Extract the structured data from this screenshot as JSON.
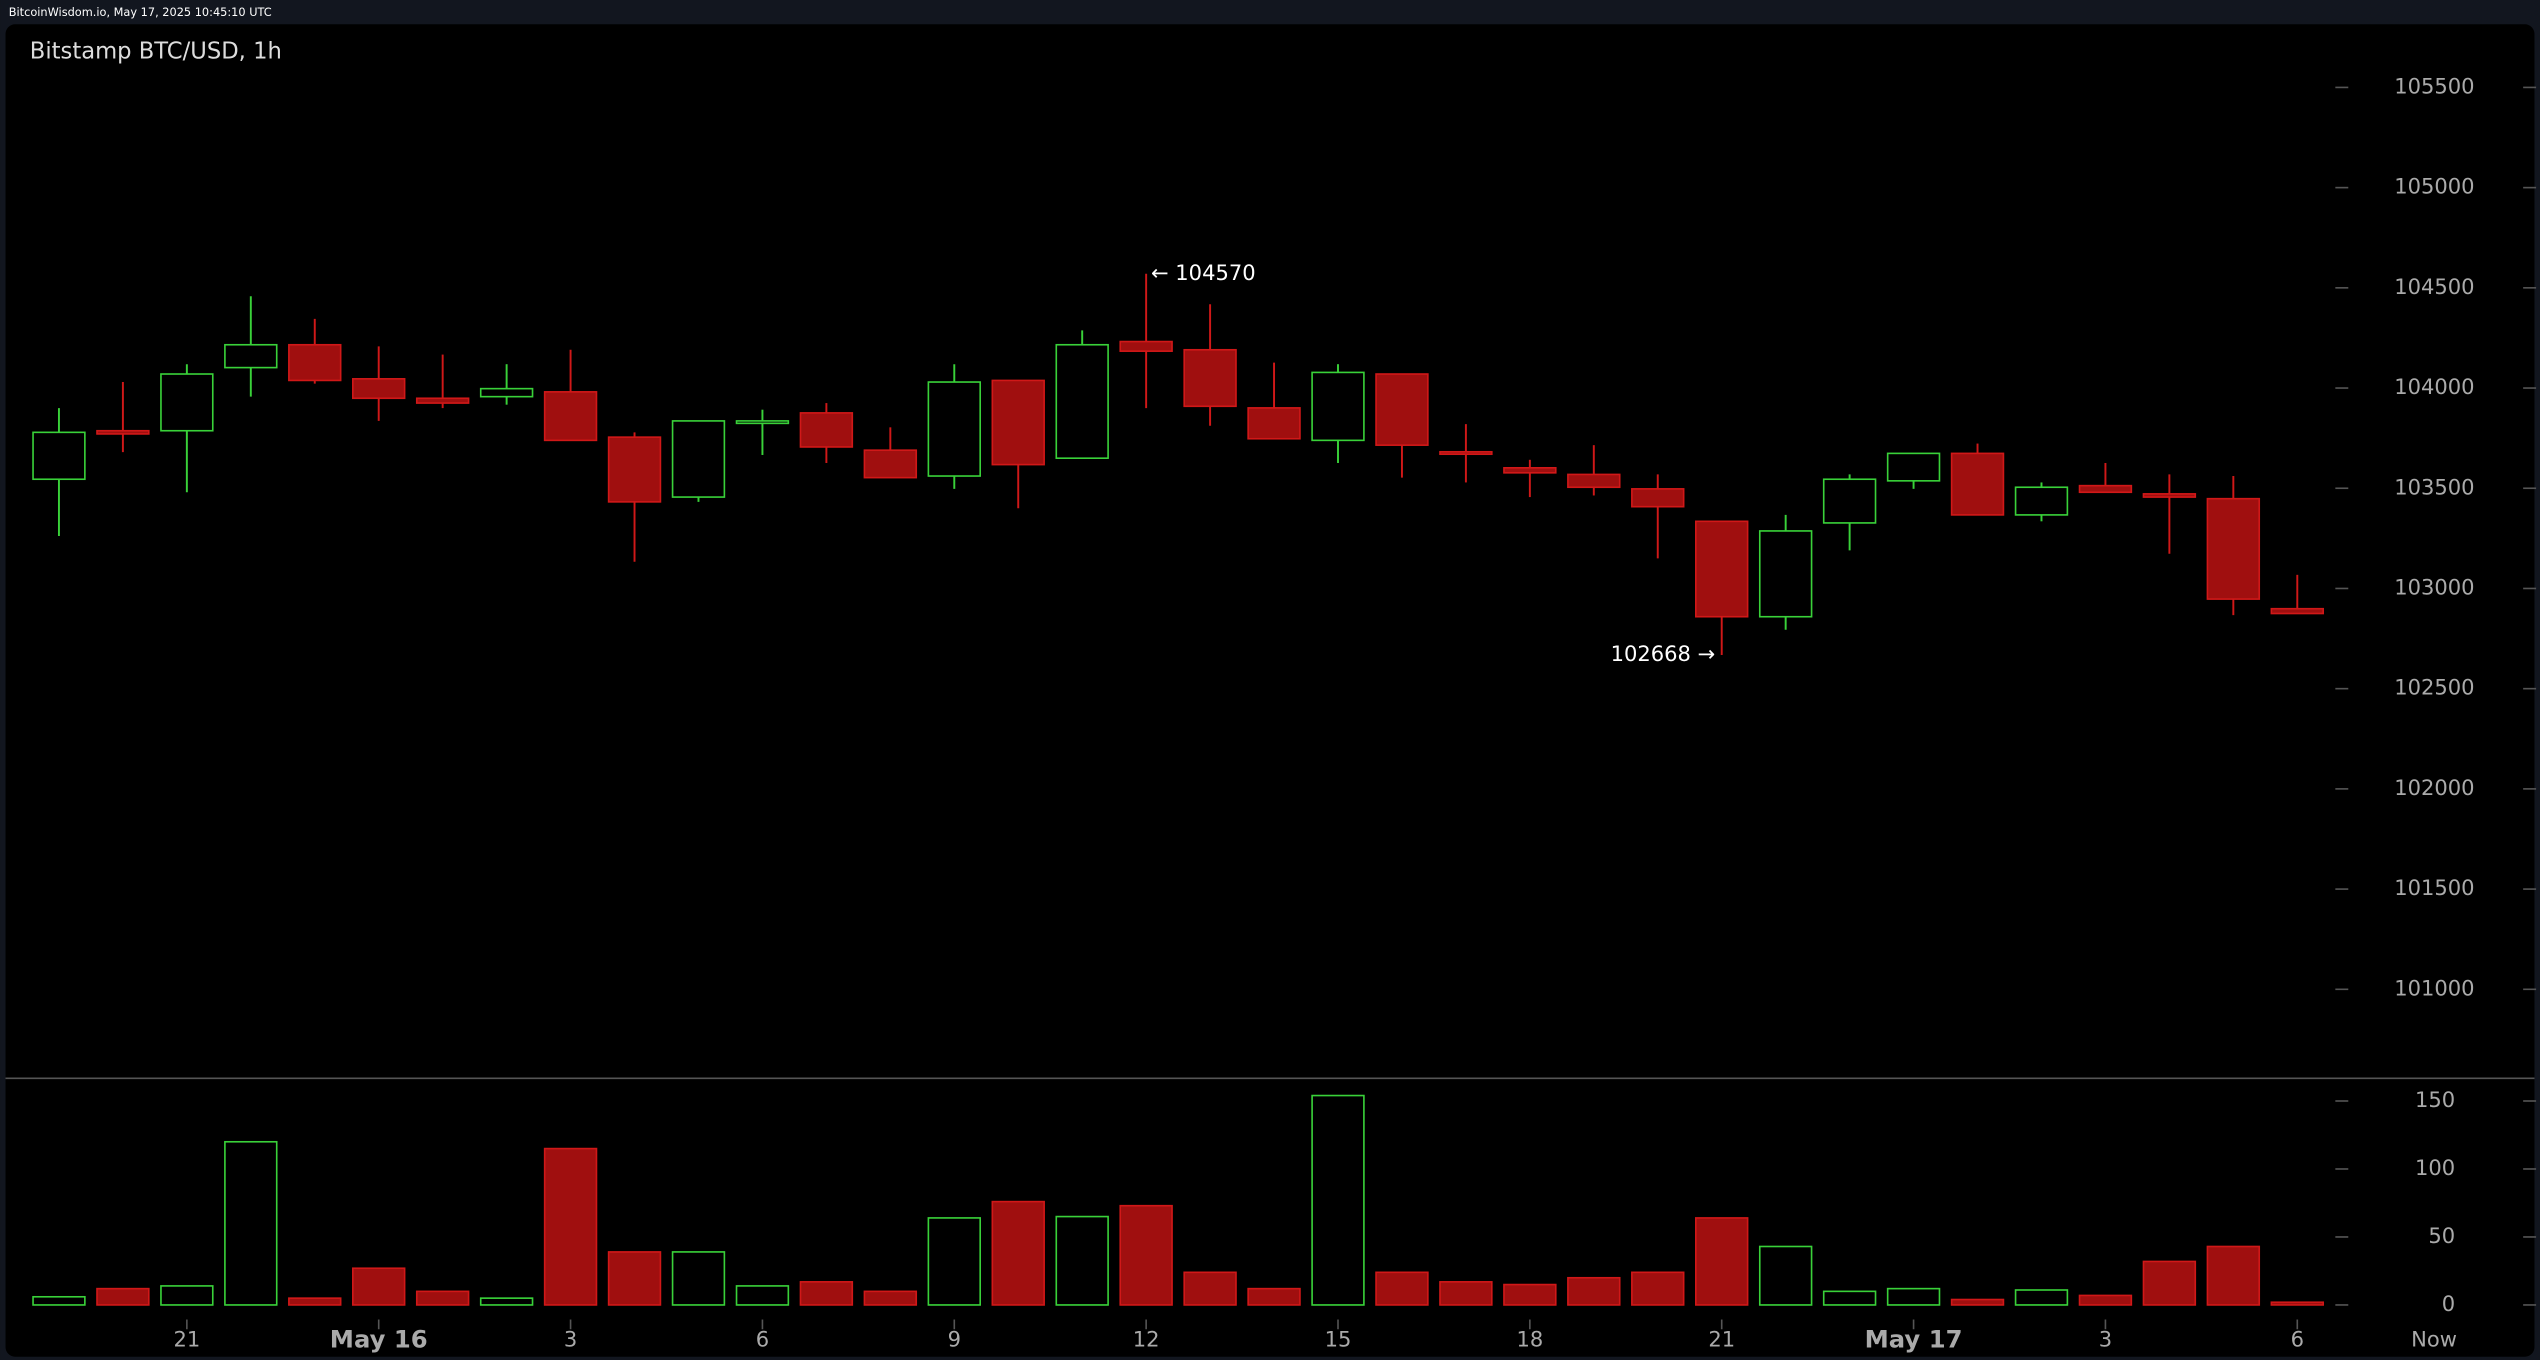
{
  "header": "BitcoinWisdom.io, May 17, 2025 10:45:10 UTC",
  "chart_data": {
    "type": "candlestick",
    "title": "Bitstamp BTC/USD, 1h",
    "categories": [
      null,
      null,
      "21",
      null,
      null,
      "May 16",
      null,
      null,
      "3",
      null,
      null,
      "6",
      null,
      null,
      "9",
      null,
      null,
      "12",
      null,
      null,
      "15",
      null,
      null,
      "18",
      null,
      null,
      "21",
      null,
      null,
      "May 17",
      null,
      null,
      "3",
      null,
      null,
      "6"
    ],
    "end_label": "Now",
    "open": [
      103545,
      103787,
      103787,
      104102,
      104216,
      104046,
      103949,
      103957,
      103981,
      103755,
      103456,
      103828,
      103876,
      103690,
      103561,
      104038,
      103650,
      104232,
      104191,
      103901,
      103739,
      104070,
      103682,
      103602,
      103569,
      103497,
      103335,
      102859,
      103327,
      103537,
      103674,
      103367,
      103513,
      103472,
      103448,
      102899
    ],
    "high": [
      103900,
      104030,
      104119,
      104458,
      104345,
      104208,
      104167,
      104119,
      104191,
      103779,
      103836,
      103892,
      103925,
      103804,
      104119,
      104038,
      104288,
      104570,
      104418,
      104127,
      104119,
      104070,
      103820,
      103642,
      103715,
      103569,
      103335,
      103367,
      103569,
      103674,
      103723,
      103529,
      103626,
      103569,
      103561,
      103068
    ],
    "low": [
      103262,
      103680,
      103480,
      103957,
      104022,
      103836,
      103900,
      103917,
      103739,
      103133,
      103432,
      103666,
      103626,
      103553,
      103497,
      103400,
      103650,
      103900,
      103812,
      103747,
      103626,
      103553,
      103529,
      103456,
      103464,
      103150,
      102668,
      102794,
      103190,
      103497,
      103367,
      103335,
      103480,
      103173,
      102867,
      102875
    ],
    "close": [
      103779,
      103771,
      104070,
      104216,
      104038,
      103949,
      103925,
      103997,
      103739,
      103432,
      103836,
      103836,
      103706,
      103553,
      104030,
      103618,
      104216,
      104184,
      103909,
      103747,
      104078,
      103715,
      103674,
      103577,
      103505,
      103408,
      102859,
      103287,
      103545,
      103674,
      103367,
      103505,
      103480,
      103456,
      102947,
      102875
    ],
    "volume": [
      6,
      12,
      14,
      120,
      5,
      27,
      10,
      5,
      115,
      39,
      39,
      14,
      17,
      10,
      64,
      76,
      65,
      73,
      24,
      12,
      154,
      24,
      17,
      15,
      20,
      24,
      64,
      43,
      10,
      12,
      4,
      11,
      7,
      32,
      43,
      2
    ],
    "high_label": "← 104570",
    "low_label": "102668 →",
    "up_color": "#39d139",
    "down_color": "#d01818",
    "down_fill": "#a00f0f",
    "ylim": [
      100556,
      105815
    ],
    "yticks": [
      101000,
      101500,
      102000,
      102500,
      103000,
      103500,
      104000,
      104500,
      105000,
      105500
    ],
    "y2lim": [
      0,
      166.7
    ],
    "y2ticks": [
      0,
      50,
      100,
      150
    ]
  }
}
